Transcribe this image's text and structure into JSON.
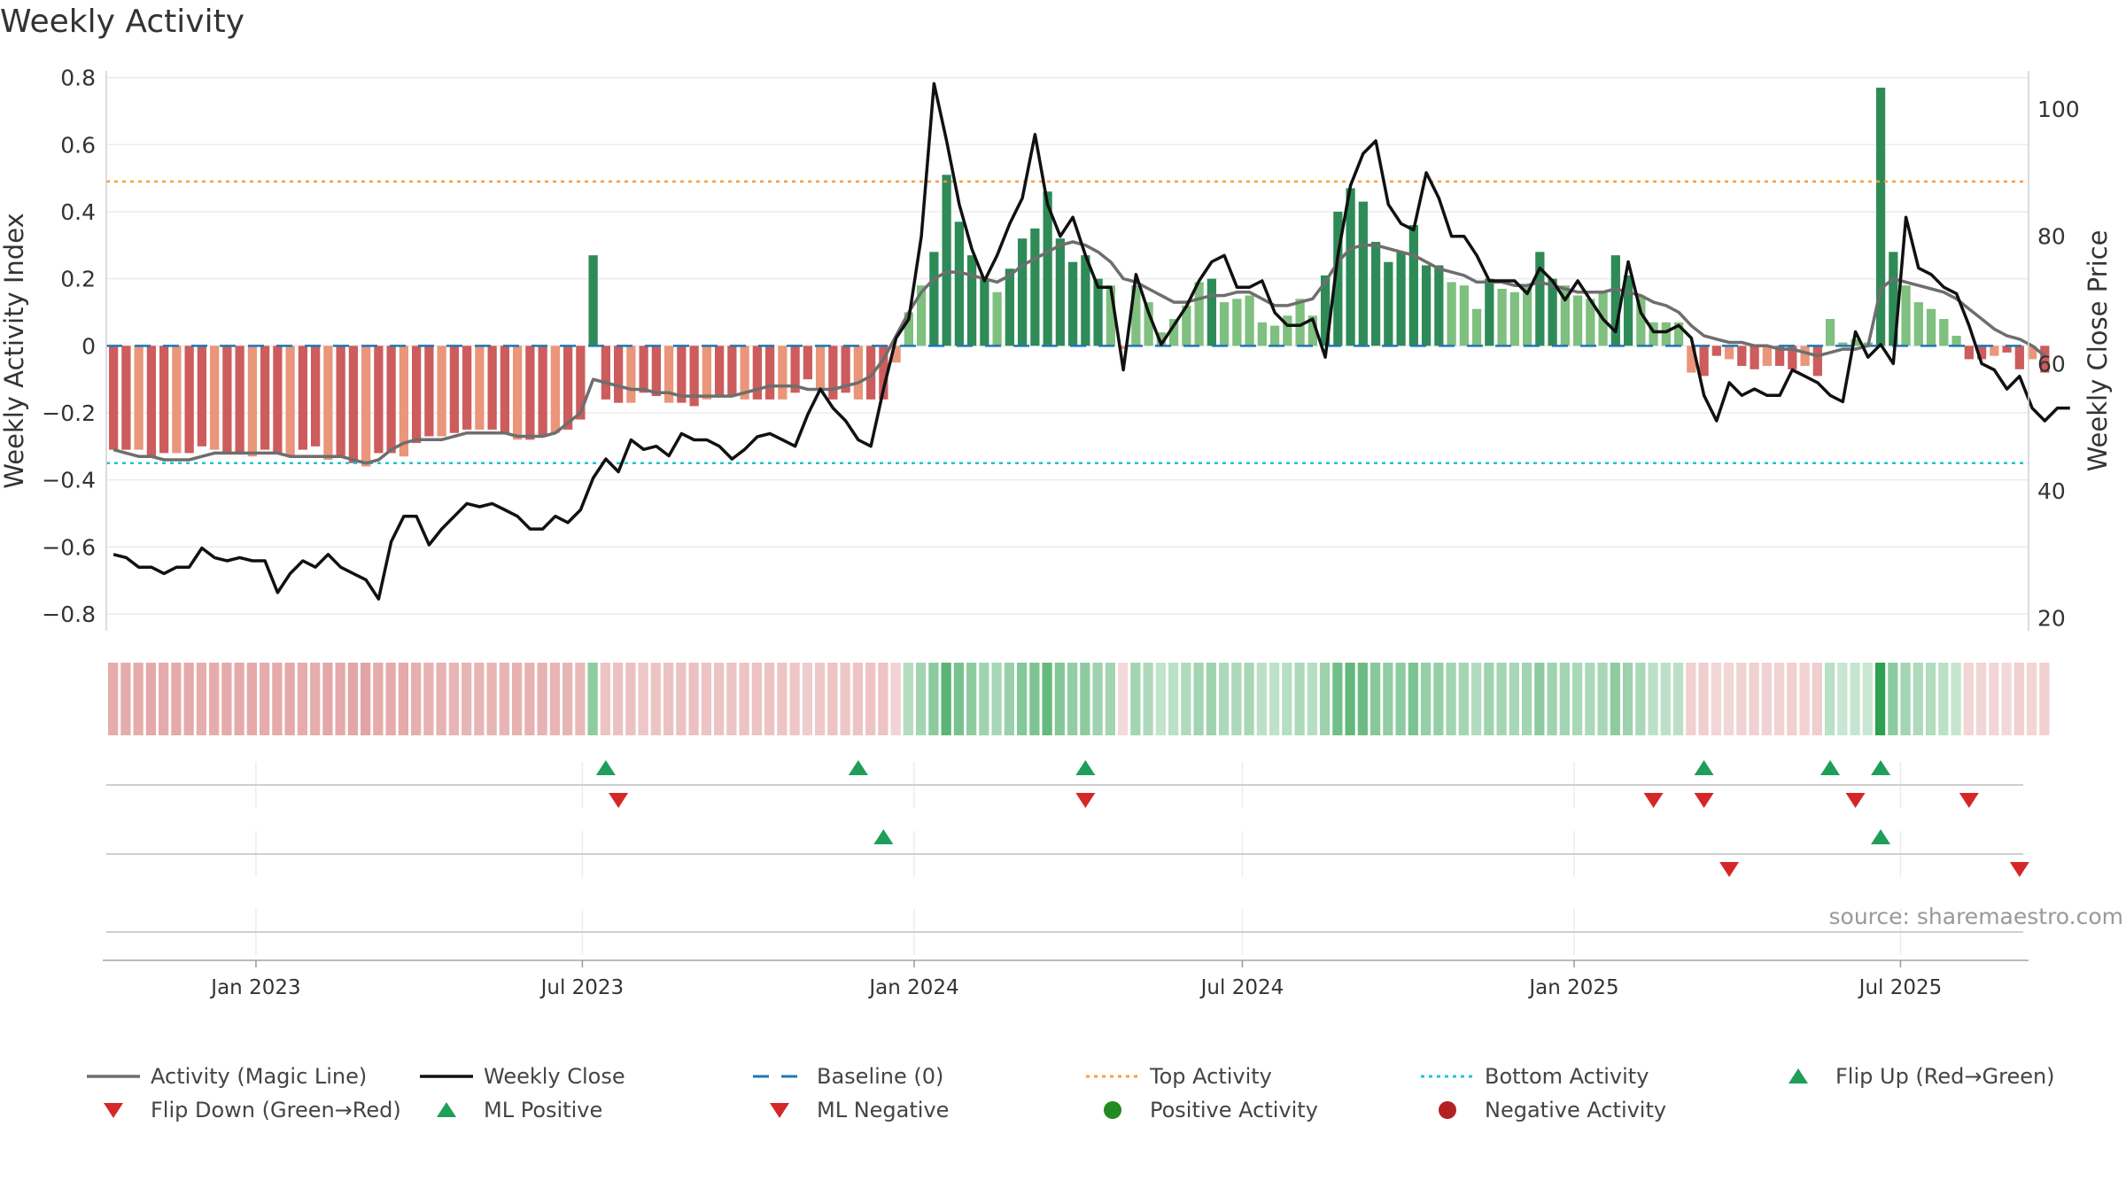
{
  "title": "Weekly Activity",
  "source": "source: sharemaestro.com",
  "colors": {
    "pos_dark": "#2e8b57",
    "pos_light": "#7fbf7f",
    "neg_dark": "#cd5c5c",
    "neg_light": "#e9967a",
    "magic": "#6e6e6e",
    "close": "#111111",
    "baseline": "#1f77b4",
    "top": "#ff9a3c",
    "bottom": "#20c5d0",
    "flip_up": "#1f9e5a",
    "flip_down": "#d62728",
    "neg_dot": "#b22222",
    "pos_dot": "#228b22"
  },
  "legend": [
    {
      "label": "Activity (Magic Line)",
      "symbol": "solid-gray"
    },
    {
      "label": "Weekly Close",
      "symbol": "solid-black"
    },
    {
      "label": "Baseline (0)",
      "symbol": "dash-blue"
    },
    {
      "label": "Top Activity",
      "symbol": "dot-orange"
    },
    {
      "label": "Bottom Activity",
      "symbol": "dot-cyan"
    },
    {
      "label": "Flip Up (Red→Green)",
      "symbol": "tri-up-green"
    },
    {
      "label": "Flip Down (Green→Red)",
      "symbol": "tri-down-red"
    },
    {
      "label": "ML Positive",
      "symbol": "tri-up-green"
    },
    {
      "label": "ML Negative",
      "symbol": "tri-down-red"
    },
    {
      "label": "Positive Activity",
      "symbol": "circle-green"
    },
    {
      "label": "Negative Activity",
      "symbol": "circle-darkred"
    }
  ],
  "chart_data": {
    "type": "bar",
    "title": "Weekly Activity",
    "ylabel": "Weekly Activity Index",
    "y2label": "Weekly Close Price",
    "ylim": [
      -0.85,
      0.82
    ],
    "y2lim": [
      18,
      106
    ],
    "yticks": [
      "0.8",
      "0.6",
      "0.4",
      "0.2",
      "0",
      "−0.2",
      "−0.4",
      "−0.6",
      "−0.8"
    ],
    "yticks_values": [
      0.8,
      0.6,
      0.4,
      0.2,
      0,
      -0.2,
      -0.4,
      -0.6,
      -0.8
    ],
    "y2ticks": [
      "100",
      "80",
      "60",
      "40",
      "20"
    ],
    "y2ticks_values": [
      100,
      80,
      60,
      40,
      20
    ],
    "x_start": "2022-10-10",
    "x_end": "2025-09-10",
    "week_start": "2022-10-14",
    "xticks": [
      {
        "date": "2023-01-01",
        "label": "Jan 2023"
      },
      {
        "date": "2023-07-01",
        "label": "Jul 2023"
      },
      {
        "date": "2024-01-01",
        "label": "Jan 2024"
      },
      {
        "date": "2024-07-01",
        "label": "Jul 2024"
      },
      {
        "date": "2025-01-01",
        "label": "Jan 2025"
      },
      {
        "date": "2025-07-01",
        "label": "Jul 2025"
      }
    ],
    "top_activity": 0.49,
    "bottom_activity": -0.35,
    "baseline": 0,
    "activity": [
      -0.31,
      -0.31,
      -0.31,
      -0.33,
      -0.32,
      -0.32,
      -0.32,
      -0.3,
      -0.31,
      -0.32,
      -0.32,
      -0.33,
      -0.31,
      -0.32,
      -0.33,
      -0.31,
      -0.3,
      -0.34,
      -0.33,
      -0.35,
      -0.36,
      -0.32,
      -0.32,
      -0.33,
      -0.29,
      -0.27,
      -0.27,
      -0.26,
      -0.25,
      -0.25,
      -0.25,
      -0.26,
      -0.28,
      -0.28,
      -0.27,
      -0.26,
      -0.25,
      -0.22,
      0.27,
      -0.16,
      -0.17,
      -0.17,
      -0.14,
      -0.15,
      -0.17,
      -0.17,
      -0.18,
      -0.16,
      -0.15,
      -0.15,
      -0.16,
      -0.16,
      -0.16,
      -0.16,
      -0.14,
      -0.1,
      -0.13,
      -0.16,
      -0.14,
      -0.16,
      -0.16,
      -0.16,
      -0.05,
      0.1,
      0.18,
      0.28,
      0.51,
      0.37,
      0.27,
      0.2,
      0.16,
      0.23,
      0.32,
      0.35,
      0.46,
      0.32,
      0.25,
      0.27,
      0.2,
      0.18,
      -0.01,
      0.18,
      0.13,
      0.04,
      0.08,
      0.12,
      0.19,
      0.2,
      0.13,
      0.14,
      0.15,
      0.07,
      0.06,
      0.09,
      0.14,
      0.09,
      0.21,
      0.4,
      0.47,
      0.43,
      0.31,
      0.25,
      0.28,
      0.36,
      0.24,
      0.24,
      0.19,
      0.18,
      0.11,
      0.2,
      0.17,
      0.16,
      0.18,
      0.28,
      0.2,
      0.18,
      0.15,
      0.14,
      0.16,
      0.27,
      0.21,
      0.15,
      0.07,
      0.07,
      0.07,
      -0.08,
      -0.09,
      -0.03,
      -0.04,
      -0.06,
      -0.07,
      -0.06,
      -0.06,
      -0.07,
      -0.06,
      -0.09,
      0.08,
      0.01,
      0.02,
      0.01,
      0.77,
      0.28,
      0.18,
      0.13,
      0.11,
      0.08,
      0.03,
      -0.04,
      -0.04,
      -0.03,
      -0.02,
      -0.07,
      -0.04,
      -0.08
    ],
    "magic_line": [
      -0.31,
      -0.32,
      -0.33,
      -0.33,
      -0.34,
      -0.34,
      -0.34,
      -0.33,
      -0.32,
      -0.32,
      -0.32,
      -0.32,
      -0.32,
      -0.32,
      -0.33,
      -0.33,
      -0.33,
      -0.33,
      -0.33,
      -0.34,
      -0.35,
      -0.34,
      -0.31,
      -0.29,
      -0.28,
      -0.28,
      -0.28,
      -0.27,
      -0.26,
      -0.26,
      -0.26,
      -0.26,
      -0.27,
      -0.27,
      -0.27,
      -0.26,
      -0.23,
      -0.2,
      -0.1,
      -0.11,
      -0.12,
      -0.13,
      -0.13,
      -0.14,
      -0.14,
      -0.15,
      -0.15,
      -0.15,
      -0.15,
      -0.15,
      -0.14,
      -0.13,
      -0.12,
      -0.12,
      -0.12,
      -0.13,
      -0.13,
      -0.13,
      -0.12,
      -0.11,
      -0.09,
      -0.04,
      0.03,
      0.1,
      0.16,
      0.2,
      0.22,
      0.22,
      0.21,
      0.2,
      0.19,
      0.21,
      0.24,
      0.26,
      0.28,
      0.3,
      0.31,
      0.3,
      0.28,
      0.25,
      0.2,
      0.19,
      0.17,
      0.15,
      0.13,
      0.13,
      0.14,
      0.15,
      0.15,
      0.16,
      0.16,
      0.14,
      0.12,
      0.12,
      0.13,
      0.14,
      0.19,
      0.25,
      0.29,
      0.3,
      0.3,
      0.29,
      0.28,
      0.27,
      0.25,
      0.23,
      0.22,
      0.21,
      0.19,
      0.19,
      0.19,
      0.18,
      0.18,
      0.19,
      0.18,
      0.17,
      0.16,
      0.16,
      0.16,
      0.17,
      0.16,
      0.15,
      0.13,
      0.12,
      0.1,
      0.06,
      0.03,
      0.02,
      0.01,
      0.01,
      0.0,
      0.0,
      -0.01,
      -0.01,
      -0.02,
      -0.03,
      -0.02,
      -0.01,
      -0.01,
      0.0,
      0.17,
      0.2,
      0.19,
      0.18,
      0.17,
      0.16,
      0.14,
      0.11,
      0.08,
      0.05,
      0.03,
      0.02,
      0.0,
      -0.03
    ],
    "weekly_close": [
      30,
      29.5,
      28,
      28,
      27,
      28,
      28,
      31,
      29.5,
      29,
      29.5,
      29,
      29,
      24,
      27,
      29,
      28,
      30,
      28,
      27,
      26,
      23,
      32,
      36,
      36,
      31.5,
      34,
      36,
      38,
      37.5,
      38,
      37,
      36,
      34,
      34,
      36,
      35,
      37,
      42,
      45,
      43,
      48,
      46.5,
      47,
      45.5,
      49,
      48,
      48,
      47,
      45,
      46.5,
      48.5,
      49,
      48,
      47,
      52,
      56,
      53,
      51,
      48,
      47,
      56,
      64,
      67,
      80,
      104,
      95,
      85,
      78,
      73,
      77,
      82,
      86,
      96,
      85,
      80,
      83,
      77,
      72,
      72,
      59,
      74,
      68,
      63,
      66,
      69,
      73,
      76,
      77,
      72,
      72,
      73,
      68,
      66,
      66,
      67,
      61,
      77,
      88,
      93,
      95,
      85,
      82,
      81,
      90,
      86,
      80,
      80,
      77,
      73,
      73,
      73,
      71,
      75,
      73,
      70,
      73,
      70,
      67,
      65,
      76,
      68,
      65,
      65,
      66,
      64,
      55,
      51,
      57,
      55,
      56,
      55,
      55,
      59,
      58,
      57,
      55,
      54,
      65,
      61,
      63,
      60,
      83,
      75,
      74,
      72,
      71,
      66,
      60,
      59,
      56,
      58,
      53,
      51,
      53,
      53
    ],
    "flip_up": [
      39,
      59,
      77,
      126,
      136,
      140
    ],
    "flip_down": [
      40,
      77,
      122,
      126,
      138,
      147
    ],
    "ml_positive": [
      61,
      140
    ],
    "ml_negative": [
      128,
      151
    ]
  }
}
